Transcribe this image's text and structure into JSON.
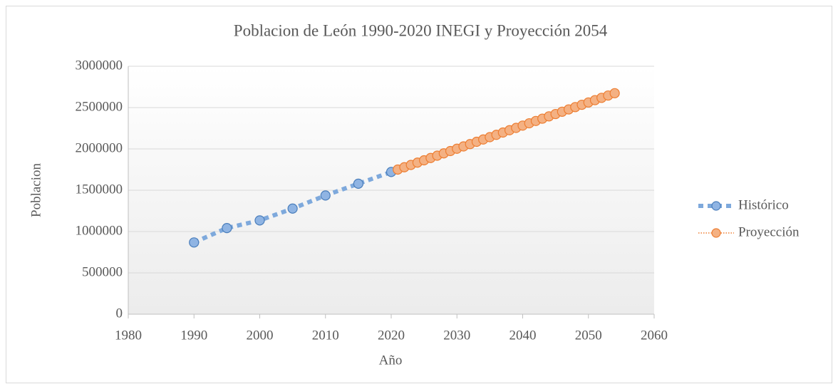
{
  "chart_data": {
    "type": "scatter",
    "title": "Poblacion de León 1990-2020 INEGI y Proyección 2054",
    "xlabel": "Año",
    "ylabel": "Poblacion",
    "xlim": [
      1980,
      2060
    ],
    "xticks": [
      1980,
      1990,
      2000,
      2010,
      2020,
      2030,
      2040,
      2050,
      2060
    ],
    "ylim": [
      0,
      3000000
    ],
    "yticks": [
      0,
      500000,
      1000000,
      1500000,
      2000000,
      2500000,
      3000000
    ],
    "grid": true,
    "legend": "right",
    "series": [
      {
        "name": "Histórico",
        "color": "#7ea9dc",
        "marker_color": "#8fb4e3",
        "marker_edge": "#4a7ebb",
        "line_style": "dashed",
        "x": [
          1990,
          1995,
          2000,
          2005,
          2010,
          2015,
          2020
        ],
        "values": [
          867920,
          1042132,
          1134842,
          1278087,
          1436480,
          1578626,
          1721215
        ]
      },
      {
        "name": "Proyección",
        "color": "#ed7d31",
        "marker_color": "#f4b183",
        "marker_edge": "#ed7d31",
        "line_style": "dotted",
        "x": [
          2021,
          2022,
          2023,
          2024,
          2025,
          2026,
          2027,
          2028,
          2029,
          2030,
          2031,
          2032,
          2033,
          2034,
          2035,
          2036,
          2037,
          2038,
          2039,
          2040,
          2041,
          2042,
          2043,
          2044,
          2045,
          2046,
          2047,
          2048,
          2049,
          2050,
          2051,
          2052,
          2053,
          2054
        ],
        "values": [
          1750000,
          1778000,
          1806000,
          1834000,
          1862000,
          1890000,
          1918000,
          1946000,
          1974000,
          2002000,
          2030000,
          2058000,
          2086000,
          2114000,
          2142000,
          2170000,
          2198000,
          2226000,
          2254000,
          2282000,
          2310000,
          2338000,
          2366000,
          2394000,
          2422000,
          2450000,
          2478000,
          2506000,
          2534000,
          2562000,
          2590000,
          2618000,
          2646000,
          2674000
        ]
      }
    ]
  }
}
